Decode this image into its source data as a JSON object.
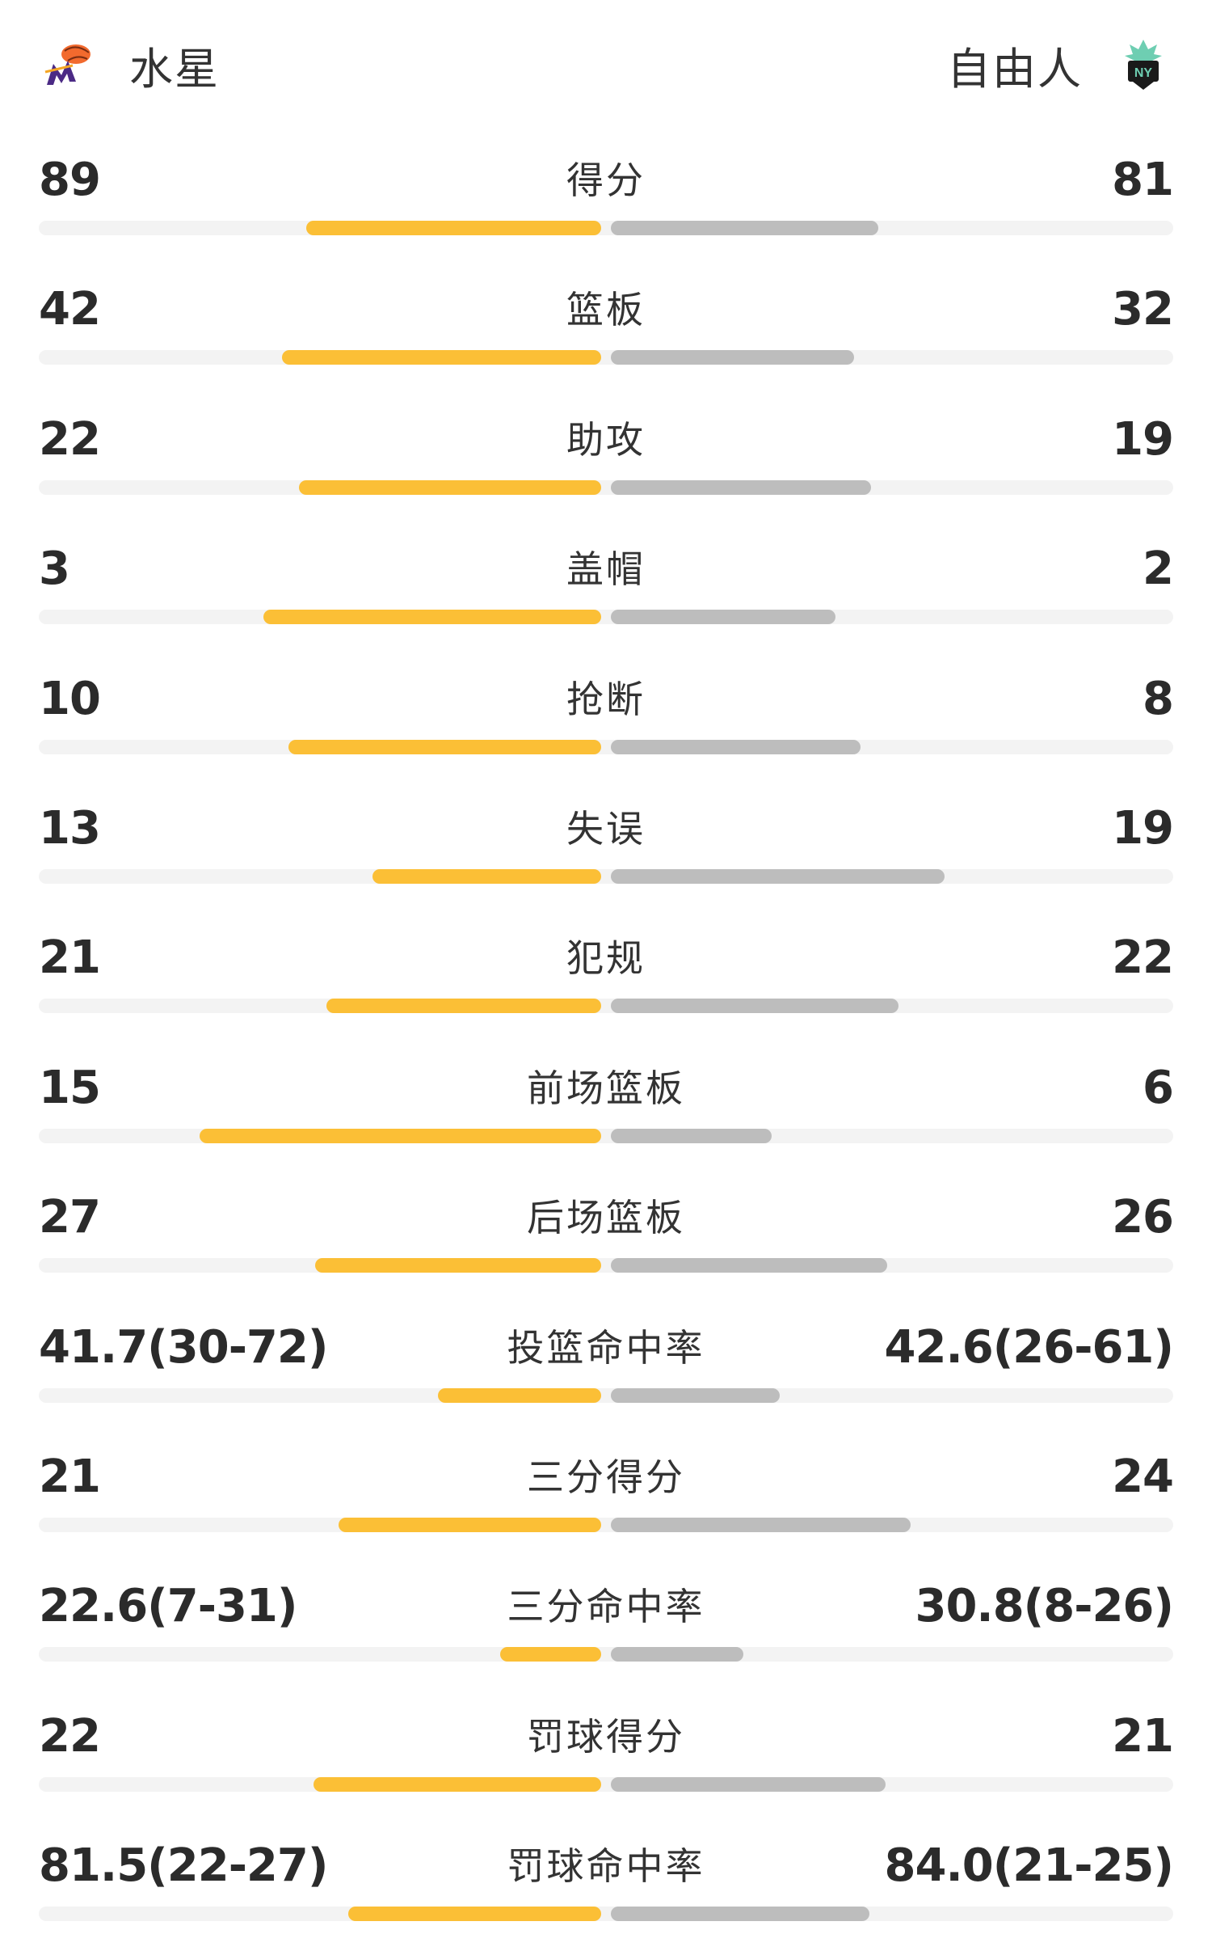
{
  "home": {
    "name": "水星",
    "logo_icon": "phoenix-mercury-logo-icon",
    "bar_color": "#fbbf36"
  },
  "away": {
    "name": "自由人",
    "logo_icon": "new-york-liberty-logo-icon",
    "bar_color": "#bdbdbd"
  },
  "stats": [
    {
      "label": "得分",
      "home": "89",
      "away": "81",
      "home_frac": 0.524,
      "away_frac": 0.476
    },
    {
      "label": "篮板",
      "home": "42",
      "away": "32",
      "home_frac": 0.568,
      "away_frac": 0.432
    },
    {
      "label": "助攻",
      "home": "22",
      "away": "19",
      "home_frac": 0.537,
      "away_frac": 0.463
    },
    {
      "label": "盖帽",
      "home": "3",
      "away": "2",
      "home_frac": 0.6,
      "away_frac": 0.4
    },
    {
      "label": "抢断",
      "home": "10",
      "away": "8",
      "home_frac": 0.556,
      "away_frac": 0.444
    },
    {
      "label": "失误",
      "home": "13",
      "away": "19",
      "home_frac": 0.406,
      "away_frac": 0.594
    },
    {
      "label": "犯规",
      "home": "21",
      "away": "22",
      "home_frac": 0.488,
      "away_frac": 0.512
    },
    {
      "label": "前场篮板",
      "home": "15",
      "away": "6",
      "home_frac": 0.714,
      "away_frac": 0.286
    },
    {
      "label": "后场篮板",
      "home": "27",
      "away": "26",
      "home_frac": 0.509,
      "away_frac": 0.491
    },
    {
      "label": "投篮命中率",
      "home": "41.7(30-72)",
      "away": "42.6(26-61)",
      "home_frac": 0.29,
      "away_frac": 0.3
    },
    {
      "label": "三分得分",
      "home": "21",
      "away": "24",
      "home_frac": 0.467,
      "away_frac": 0.533
    },
    {
      "label": "三分命中率",
      "home": "22.6(7-31)",
      "away": "30.8(8-26)",
      "home_frac": 0.18,
      "away_frac": 0.235
    },
    {
      "label": "罚球得分",
      "home": "22",
      "away": "21",
      "home_frac": 0.512,
      "away_frac": 0.488
    },
    {
      "label": "罚球命中率",
      "home": "81.5(22-27)",
      "away": "84.0(21-25)",
      "home_frac": 0.45,
      "away_frac": 0.46
    }
  ]
}
